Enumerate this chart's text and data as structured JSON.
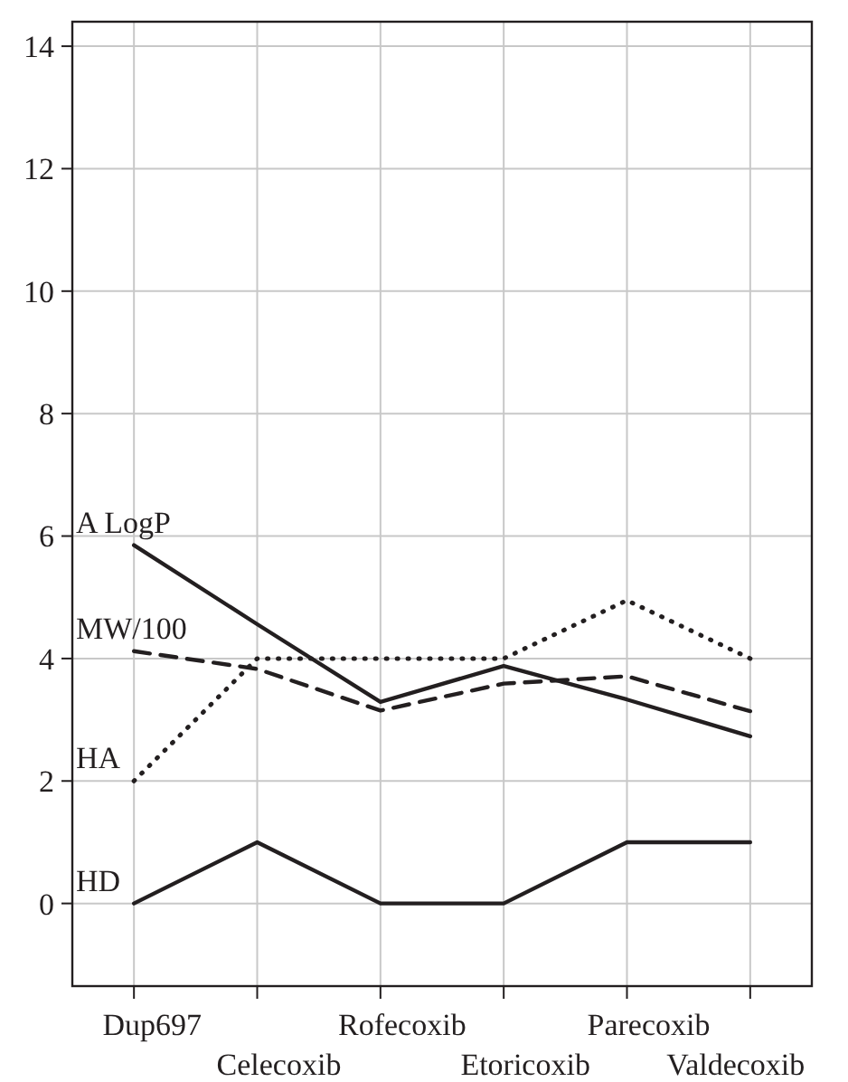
{
  "chart_data": {
    "type": "line",
    "categories": [
      "Dup697",
      "Celecoxib",
      "Rofecoxib",
      "Etoricoxib",
      "Parecoxib",
      "Valdecoxib"
    ],
    "series": [
      {
        "name": "A LogP",
        "color": "#231f20",
        "line_style": "solid",
        "values": [
          5.85,
          4.56,
          3.29,
          3.88,
          3.33,
          2.73
        ]
      },
      {
        "name": "MW/100",
        "color": "#231f20",
        "line_style": "dashed",
        "values": [
          4.12,
          3.83,
          3.15,
          3.59,
          3.71,
          3.14
        ]
      },
      {
        "name": "HA",
        "color": "#231f20",
        "line_style": "dotted",
        "values": [
          2,
          4,
          4,
          4,
          4.95,
          4
        ]
      },
      {
        "name": "HD",
        "color": "#231f20",
        "line_style": "solid",
        "values": [
          0,
          1,
          0,
          0,
          1,
          1
        ]
      }
    ],
    "ylim": [
      -1.35,
      14.4
    ],
    "yticks": [
      0,
      2,
      4,
      6,
      8,
      10,
      12,
      14
    ],
    "grid": true
  }
}
